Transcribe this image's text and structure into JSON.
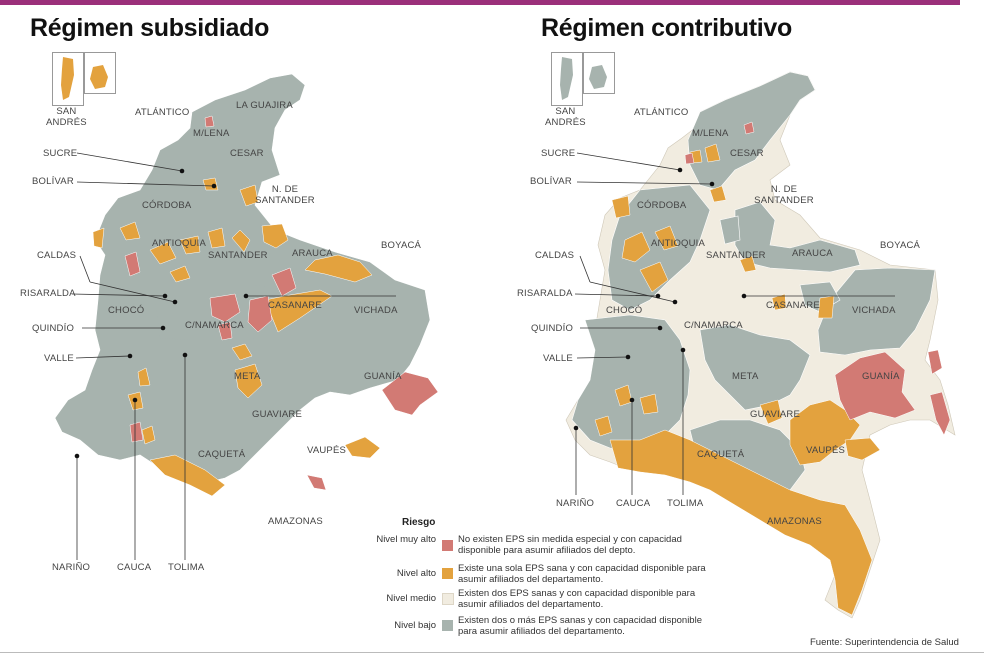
{
  "titles": {
    "left": "Régimen subsidiado",
    "right": "Régimen contributivo"
  },
  "colors": {
    "muy_alto": "#d27a74",
    "alto": "#e3a23e",
    "medio": "#f1ece0",
    "bajo": "#a7b3ae",
    "accent_bar": "#9b2f7a"
  },
  "islands_label": "SAN\nANDRÉS",
  "departments": {
    "atlantico": "ATLÁNTICO",
    "la_guajira": "LA GUAJIRA",
    "magdalena": "M/LENA",
    "cesar": "CESAR",
    "sucre": "SUCRE",
    "bolivar": "BOLÍVAR",
    "norte_santander": "N. DE SANTANDER",
    "cordoba": "CÓRDOBA",
    "antioquia": "ANTIOQUIA",
    "caldas": "CALDAS",
    "santander": "SANTANDER",
    "arauca": "ARAUCA",
    "boyaca": "BOYACÁ",
    "risaralda": "RISARALDA",
    "casanare": "CASANARE",
    "choco": "CHOCÓ",
    "vichada": "VICHADA",
    "quindio": "QUINDÍO",
    "cundinamarca": "C/NAMARCA",
    "valle": "VALLE",
    "meta": "META",
    "guainia": "GUANÍA",
    "guaviare": "GUAVIARE",
    "vaupes": "VAUPÉS",
    "caqueta": "CAQUETÁ",
    "amazonas": "AMAZONAS",
    "narino": "NARIÑO",
    "cauca": "CAUCA",
    "tolima": "TOLIMA"
  },
  "legend": {
    "title": "Riesgo",
    "items": [
      {
        "level": "Nivel muy alto",
        "color": "#d27a74",
        "desc": "No existen EPS sin medida especial y con capacidad disponible para asumir afiliados del depto."
      },
      {
        "level": "Nivel alto",
        "color": "#e3a23e",
        "desc": "Existe una sola EPS sana y con capacidad disponible para asumir afiliados del departamento."
      },
      {
        "level": "Nivel medio",
        "color": "#f1ece0",
        "desc": "Existen dos EPS sanas y con capacidad disponible para asumir afiliados del departamento."
      },
      {
        "level": "Nivel bajo",
        "color": "#a7b3ae",
        "desc": "Existen dos o más EPS sanas y con capacidad disponible para asumir afiliados del departamento."
      }
    ]
  },
  "source": "Fuente: Superintendencia de Salud"
}
